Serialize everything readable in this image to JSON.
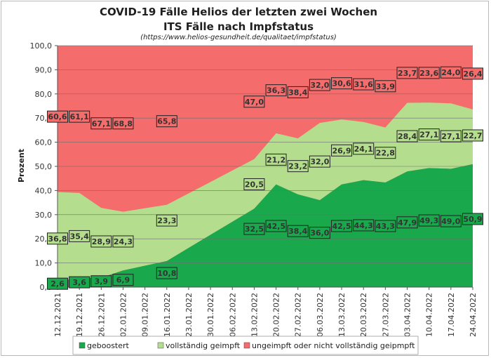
{
  "chart_data": {
    "type": "area",
    "stacked": true,
    "title": "COVID-19 Fälle Helios der letzten zwei Wochen",
    "subtitle": "ITS Fälle nach Impfstatus",
    "source": "(https://www.helios-gesundheit.de/qualitaet/impfstatus)",
    "ylabel": "Prozent",
    "xlabel": "",
    "ylim": [
      0,
      100
    ],
    "ytick_labels": [
      "0,0",
      "10,0",
      "20,0",
      "30,0",
      "40,0",
      "50,0",
      "60,0",
      "70,0",
      "80,0",
      "90,0",
      "100,0"
    ],
    "categories": [
      "12.12.2021",
      "19.12.2021",
      "26.12.2021",
      "02.01.2022",
      "09.01.2022",
      "16.01.2022",
      "23.01.2022",
      "30.01.2022",
      "06.02.2022",
      "13.02.2022",
      "20.02.2022",
      "27.02.2022",
      "06.03.2022",
      "13.03.2022",
      "20.03.2022",
      "27.03.2022",
      "03.04.2022",
      "10.04.2022",
      "17.04.2022",
      "24.04.2022"
    ],
    "series": [
      {
        "name": "geboostert",
        "color": "#1aa84d",
        "values": [
          2.6,
          3.6,
          3.9,
          6.9,
          null,
          10.8,
          null,
          null,
          null,
          32.5,
          42.5,
          38.4,
          36.0,
          42.5,
          44.3,
          43.3,
          47.9,
          49.3,
          49.0,
          50.9
        ],
        "labels": [
          "2,6",
          "3,6",
          "3,9",
          "6,9",
          null,
          "10,8",
          null,
          null,
          null,
          "32,5",
          "42,5",
          "38,4",
          "36,0",
          "42,5",
          "44,3",
          "43,3",
          "47,9",
          "49,3",
          "49,0",
          "50,9"
        ]
      },
      {
        "name": "vollständig geimpft",
        "color": "#b4de8e",
        "values": [
          36.8,
          35.4,
          28.9,
          24.3,
          null,
          23.3,
          null,
          null,
          null,
          20.5,
          21.2,
          23.2,
          32.0,
          26.9,
          24.1,
          22.8,
          28.4,
          27.1,
          27.1,
          22.7
        ],
        "labels": [
          "36,8",
          "35,4",
          "28,9",
          "24,3",
          null,
          "23,3",
          null,
          null,
          null,
          "20,5",
          "21,2",
          "23,2",
          "32,0",
          "26,9",
          "24,1",
          "22,8",
          "28,4",
          "27,1",
          "27,1",
          "22,7"
        ]
      },
      {
        "name": "ungeimpft oder nicht vollständig geipmpft",
        "color": "#f46c6c",
        "values": [
          60.6,
          61.1,
          67.1,
          68.8,
          null,
          65.8,
          null,
          null,
          null,
          47.0,
          36.3,
          38.4,
          32.0,
          30.6,
          31.6,
          33.9,
          23.7,
          23.6,
          24.0,
          26.4
        ],
        "labels": [
          "60,6",
          "61,1",
          "67,1",
          "68,8",
          null,
          "65,8",
          null,
          null,
          null,
          "47,0",
          "36,3",
          "38,4",
          "32,0",
          "30,6",
          "31,6",
          "33,9",
          "23,7",
          "23,6",
          "24,0",
          "26,4"
        ]
      }
    ],
    "grid": true,
    "legend_position": "bottom"
  }
}
